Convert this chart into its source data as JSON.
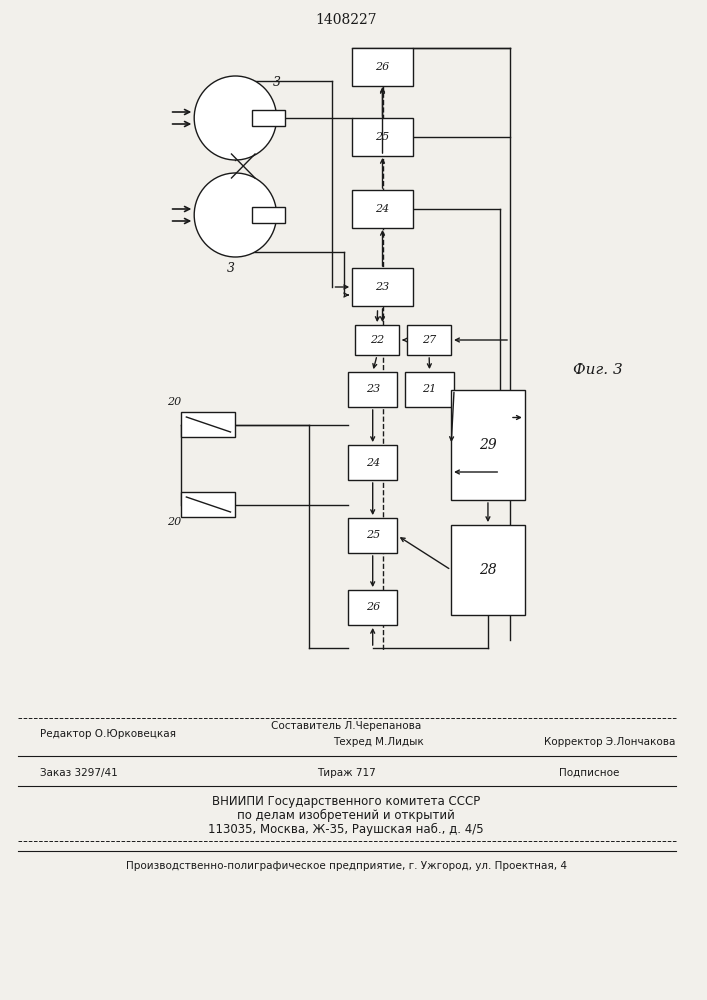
{
  "title": "1408227",
  "fig_label": "Фиг. 3",
  "bg_color": "#f2f0eb",
  "line_color": "#1a1a1a",
  "box_color": "#ffffff",
  "footer": {
    "editor": "Редактор О.Юрковецкая",
    "compiler": "Составитель Л.Черепанова",
    "techred": "Техред М.Лидык",
    "corrector": "Корректор Э.Лончакова",
    "order": "Заказ 3297/41",
    "tirazh": "Тираж 717",
    "podpisnoe": "Подписное",
    "vniipи": "ВНИИПИ Государственного комитета СССР",
    "po_delam": "по делам изобретений и открытий",
    "address": "113035, Москва, Ж-35, Раушская наб., д. 4/5",
    "production": "Производственно-полиграфическое предприятие, г. Ужгород, ул. Проектная, 4"
  }
}
